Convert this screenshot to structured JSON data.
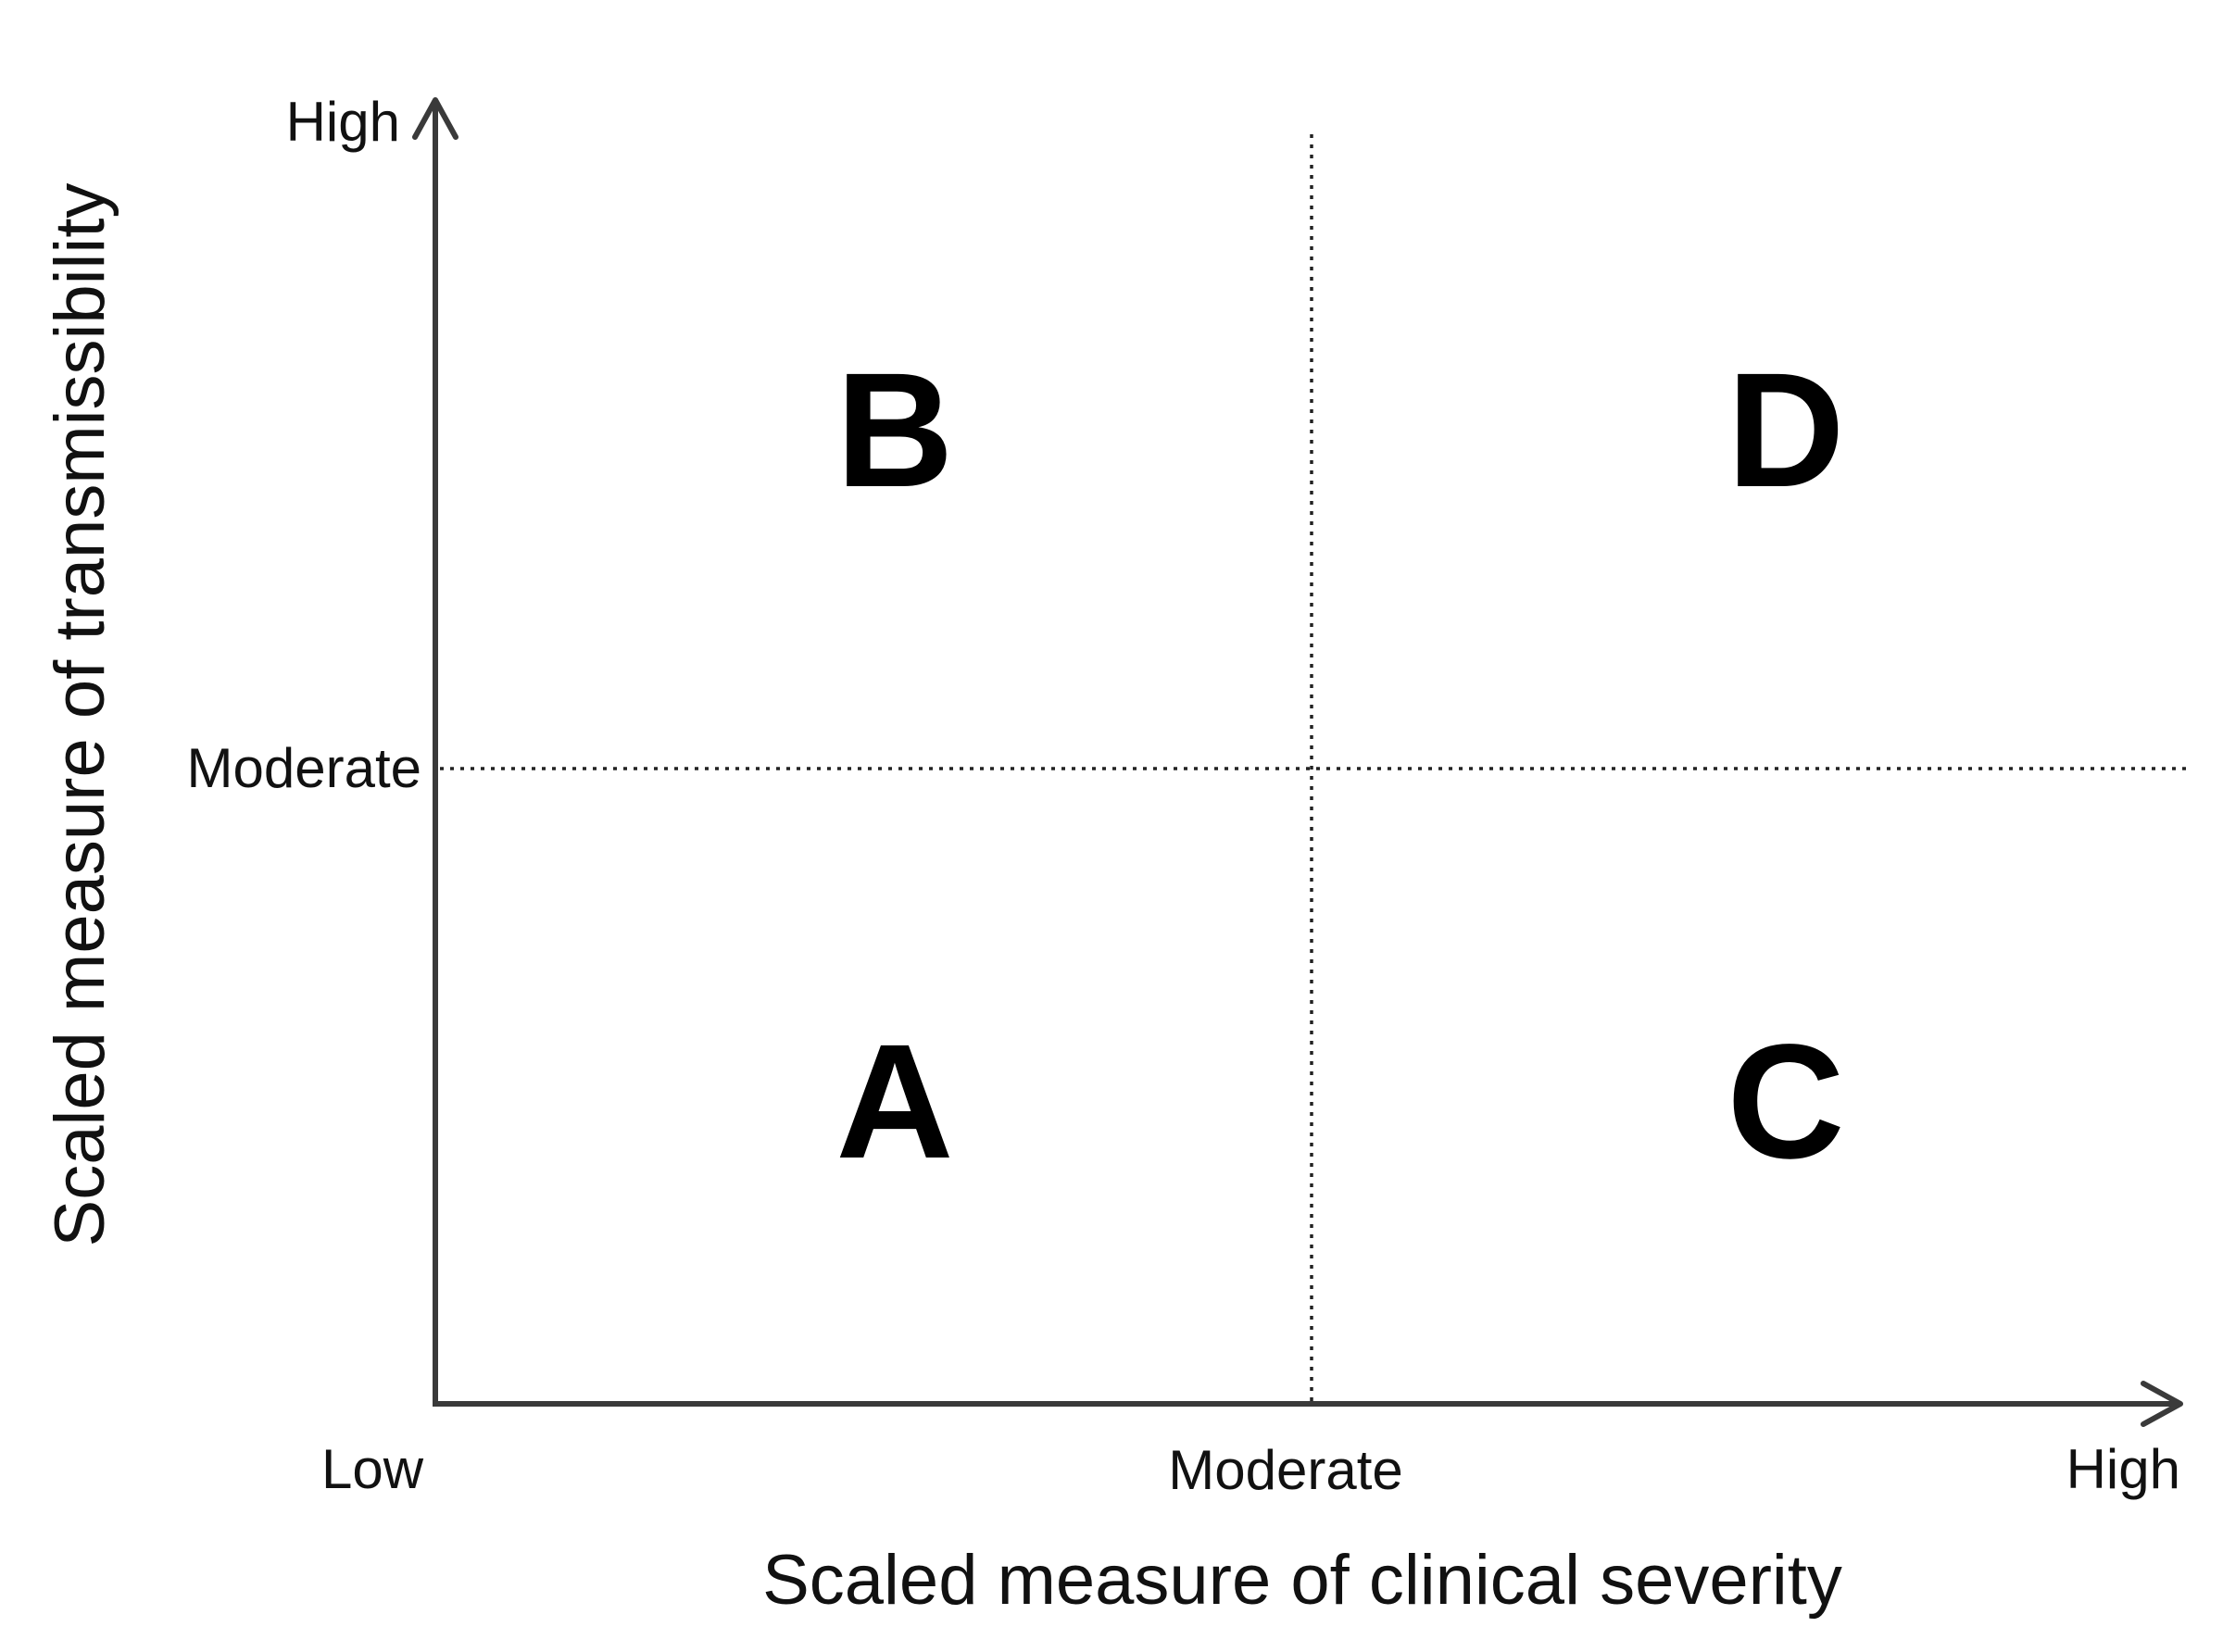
{
  "x_axis": {
    "title": "Scaled measure of clinical severity",
    "ticks": {
      "low": "Low",
      "moderate": "Moderate",
      "high": "High"
    }
  },
  "y_axis": {
    "title": "Scaled measure of transmissibility",
    "ticks": {
      "moderate": "Moderate",
      "high": "High"
    }
  },
  "quadrants": {
    "low_severity_high_transmissibility": "B",
    "high_severity_high_transmissibility": "D",
    "low_severity_low_transmissibility": "A",
    "high_severity_low_transmissibility": "C"
  },
  "colors": {
    "axis": "#3a3a3a",
    "text": "#111111"
  }
}
